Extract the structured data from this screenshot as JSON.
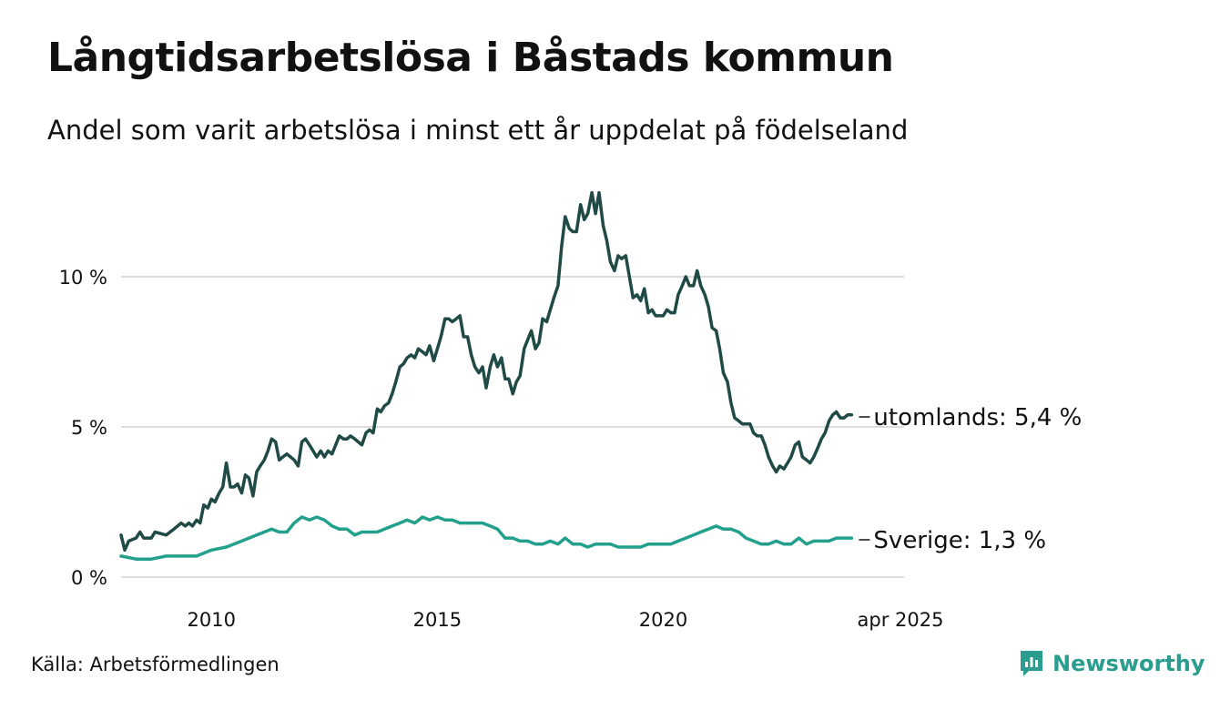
{
  "header": {
    "title": "Långtidsarbetslösa i Båstads kommun",
    "subtitle": "Andel som varit arbetslösa i minst ett år uppdelat på födelseland"
  },
  "footer": {
    "source": "Källa: Arbetsförmedlingen",
    "brand": "Newsworthy",
    "brand_color": "#2a9d8f"
  },
  "chart_data": {
    "type": "line",
    "title": "Långtidsarbetslösa i Båstads kommun",
    "subtitle": "Andel som varit arbetslösa i minst ett år uppdelat på födelseland",
    "xlabel": "",
    "ylabel": "",
    "xlim": [
      2008.0,
      2025.33
    ],
    "ylim": [
      0,
      13
    ],
    "grid": "horizontal",
    "y_ticks": [
      {
        "value": 0,
        "label": "0 %"
      },
      {
        "value": 5,
        "label": "5 %"
      },
      {
        "value": 10,
        "label": "10 %"
      }
    ],
    "x_ticks": [
      {
        "value": 2010,
        "label": "2010"
      },
      {
        "value": 2015,
        "label": "2015"
      },
      {
        "value": 2020,
        "label": "2020"
      },
      {
        "value": 2025.25,
        "label": "apr 2025"
      }
    ],
    "series": [
      {
        "name": "utomlands",
        "end_label": "utomlands: 5,4 %",
        "color": "#1f4a45",
        "points": [
          [
            2008.0,
            1.4
          ],
          [
            2008.08,
            0.9
          ],
          [
            2008.17,
            1.2
          ],
          [
            2008.33,
            1.3
          ],
          [
            2008.42,
            1.5
          ],
          [
            2008.5,
            1.3
          ],
          [
            2008.67,
            1.3
          ],
          [
            2008.75,
            1.5
          ],
          [
            2009.0,
            1.4
          ],
          [
            2009.17,
            1.6
          ],
          [
            2009.33,
            1.8
          ],
          [
            2009.42,
            1.7
          ],
          [
            2009.5,
            1.8
          ],
          [
            2009.58,
            1.7
          ],
          [
            2009.67,
            1.9
          ],
          [
            2009.75,
            1.8
          ],
          [
            2009.83,
            2.4
          ],
          [
            2009.92,
            2.3
          ],
          [
            2010.0,
            2.6
          ],
          [
            2010.08,
            2.5
          ],
          [
            2010.17,
            2.8
          ],
          [
            2010.25,
            3.0
          ],
          [
            2010.33,
            3.8
          ],
          [
            2010.42,
            3.0
          ],
          [
            2010.5,
            3.0
          ],
          [
            2010.58,
            3.1
          ],
          [
            2010.67,
            2.8
          ],
          [
            2010.75,
            3.4
          ],
          [
            2010.83,
            3.3
          ],
          [
            2010.92,
            2.7
          ],
          [
            2011.0,
            3.5
          ],
          [
            2011.08,
            3.7
          ],
          [
            2011.17,
            3.9
          ],
          [
            2011.25,
            4.2
          ],
          [
            2011.33,
            4.6
          ],
          [
            2011.42,
            4.5
          ],
          [
            2011.5,
            3.9
          ],
          [
            2011.58,
            4.0
          ],
          [
            2011.67,
            4.1
          ],
          [
            2011.75,
            4.0
          ],
          [
            2011.83,
            3.9
          ],
          [
            2011.92,
            3.7
          ],
          [
            2012.0,
            4.5
          ],
          [
            2012.08,
            4.6
          ],
          [
            2012.17,
            4.4
          ],
          [
            2012.25,
            4.2
          ],
          [
            2012.33,
            4.0
          ],
          [
            2012.42,
            4.2
          ],
          [
            2012.5,
            4.0
          ],
          [
            2012.58,
            4.2
          ],
          [
            2012.67,
            4.1
          ],
          [
            2012.75,
            4.4
          ],
          [
            2012.83,
            4.7
          ],
          [
            2012.92,
            4.6
          ],
          [
            2013.0,
            4.6
          ],
          [
            2013.08,
            4.7
          ],
          [
            2013.17,
            4.6
          ],
          [
            2013.25,
            4.5
          ],
          [
            2013.33,
            4.4
          ],
          [
            2013.42,
            4.8
          ],
          [
            2013.5,
            4.9
          ],
          [
            2013.58,
            4.8
          ],
          [
            2013.67,
            5.6
          ],
          [
            2013.75,
            5.5
          ],
          [
            2013.83,
            5.7
          ],
          [
            2013.92,
            5.8
          ],
          [
            2014.0,
            6.1
          ],
          [
            2014.08,
            6.5
          ],
          [
            2014.17,
            7.0
          ],
          [
            2014.25,
            7.1
          ],
          [
            2014.33,
            7.3
          ],
          [
            2014.42,
            7.4
          ],
          [
            2014.5,
            7.3
          ],
          [
            2014.58,
            7.6
          ],
          [
            2014.67,
            7.5
          ],
          [
            2014.75,
            7.4
          ],
          [
            2014.83,
            7.7
          ],
          [
            2014.92,
            7.2
          ],
          [
            2015.0,
            7.6
          ],
          [
            2015.08,
            8.0
          ],
          [
            2015.17,
            8.6
          ],
          [
            2015.25,
            8.6
          ],
          [
            2015.33,
            8.5
          ],
          [
            2015.42,
            8.6
          ],
          [
            2015.5,
            8.7
          ],
          [
            2015.58,
            8.0
          ],
          [
            2015.67,
            8.0
          ],
          [
            2015.75,
            7.4
          ],
          [
            2015.83,
            7.0
          ],
          [
            2015.92,
            6.8
          ],
          [
            2016.0,
            7.0
          ],
          [
            2016.08,
            6.3
          ],
          [
            2016.17,
            7.0
          ],
          [
            2016.25,
            7.4
          ],
          [
            2016.33,
            7.0
          ],
          [
            2016.42,
            7.3
          ],
          [
            2016.5,
            6.6
          ],
          [
            2016.58,
            6.6
          ],
          [
            2016.67,
            6.1
          ],
          [
            2016.75,
            6.5
          ],
          [
            2016.83,
            6.7
          ],
          [
            2016.92,
            7.6
          ],
          [
            2017.0,
            7.9
          ],
          [
            2017.08,
            8.2
          ],
          [
            2017.17,
            7.6
          ],
          [
            2017.25,
            7.8
          ],
          [
            2017.33,
            8.6
          ],
          [
            2017.42,
            8.5
          ],
          [
            2017.5,
            8.9
          ],
          [
            2017.58,
            9.3
          ],
          [
            2017.67,
            9.7
          ],
          [
            2017.75,
            11.0
          ],
          [
            2017.83,
            12.0
          ],
          [
            2017.92,
            11.6
          ],
          [
            2018.0,
            11.5
          ],
          [
            2018.08,
            11.5
          ],
          [
            2018.17,
            12.4
          ],
          [
            2018.25,
            11.9
          ],
          [
            2018.33,
            12.1
          ],
          [
            2018.42,
            12.8
          ],
          [
            2018.5,
            12.1
          ],
          [
            2018.58,
            12.8
          ],
          [
            2018.67,
            11.7
          ],
          [
            2018.75,
            11.2
          ],
          [
            2018.83,
            10.5
          ],
          [
            2018.92,
            10.2
          ],
          [
            2019.0,
            10.7
          ],
          [
            2019.08,
            10.6
          ],
          [
            2019.17,
            10.7
          ],
          [
            2019.25,
            10.0
          ],
          [
            2019.33,
            9.3
          ],
          [
            2019.42,
            9.4
          ],
          [
            2019.5,
            9.2
          ],
          [
            2019.58,
            9.6
          ],
          [
            2019.67,
            8.8
          ],
          [
            2019.75,
            8.9
          ],
          [
            2019.83,
            8.7
          ],
          [
            2019.92,
            8.7
          ],
          [
            2020.0,
            8.7
          ],
          [
            2020.08,
            8.9
          ],
          [
            2020.17,
            8.8
          ],
          [
            2020.25,
            8.8
          ],
          [
            2020.33,
            9.4
          ],
          [
            2020.42,
            9.7
          ],
          [
            2020.5,
            10.0
          ],
          [
            2020.58,
            9.7
          ],
          [
            2020.67,
            9.7
          ],
          [
            2020.75,
            10.2
          ],
          [
            2020.83,
            9.7
          ],
          [
            2020.92,
            9.4
          ],
          [
            2021.0,
            9.0
          ],
          [
            2021.08,
            8.3
          ],
          [
            2021.17,
            8.2
          ],
          [
            2021.25,
            7.6
          ],
          [
            2021.33,
            6.8
          ],
          [
            2021.42,
            6.5
          ],
          [
            2021.5,
            5.8
          ],
          [
            2021.58,
            5.3
          ],
          [
            2021.67,
            5.2
          ],
          [
            2021.75,
            5.1
          ],
          [
            2021.83,
            5.1
          ],
          [
            2021.92,
            5.1
          ],
          [
            2022.0,
            4.8
          ],
          [
            2022.08,
            4.7
          ],
          [
            2022.17,
            4.7
          ],
          [
            2022.25,
            4.4
          ],
          [
            2022.33,
            4.0
          ],
          [
            2022.42,
            3.7
          ],
          [
            2022.5,
            3.5
          ],
          [
            2022.58,
            3.7
          ],
          [
            2022.67,
            3.6
          ],
          [
            2022.75,
            3.8
          ],
          [
            2022.83,
            4.0
          ],
          [
            2022.92,
            4.4
          ],
          [
            2023.0,
            4.5
          ],
          [
            2023.08,
            4.0
          ],
          [
            2023.17,
            3.9
          ],
          [
            2023.25,
            3.8
          ],
          [
            2023.33,
            4.0
          ],
          [
            2023.42,
            4.3
          ],
          [
            2023.5,
            4.6
          ],
          [
            2023.58,
            4.8
          ],
          [
            2023.67,
            5.2
          ],
          [
            2023.75,
            5.4
          ],
          [
            2023.83,
            5.5
          ],
          [
            2023.92,
            5.3
          ],
          [
            2024.0,
            5.3
          ],
          [
            2024.08,
            5.4
          ],
          [
            2024.17,
            5.4
          ]
        ]
      },
      {
        "name": "Sverige",
        "end_label": "Sverige: 1,3 %",
        "color": "#22a08c",
        "points": [
          [
            2008.0,
            0.7
          ],
          [
            2008.33,
            0.6
          ],
          [
            2008.67,
            0.6
          ],
          [
            2009.0,
            0.7
          ],
          [
            2009.33,
            0.7
          ],
          [
            2009.67,
            0.7
          ],
          [
            2010.0,
            0.9
          ],
          [
            2010.33,
            1.0
          ],
          [
            2010.67,
            1.2
          ],
          [
            2011.0,
            1.4
          ],
          [
            2011.17,
            1.5
          ],
          [
            2011.33,
            1.6
          ],
          [
            2011.5,
            1.5
          ],
          [
            2011.67,
            1.5
          ],
          [
            2011.83,
            1.8
          ],
          [
            2012.0,
            2.0
          ],
          [
            2012.17,
            1.9
          ],
          [
            2012.33,
            2.0
          ],
          [
            2012.5,
            1.9
          ],
          [
            2012.67,
            1.7
          ],
          [
            2012.83,
            1.6
          ],
          [
            2013.0,
            1.6
          ],
          [
            2013.17,
            1.4
          ],
          [
            2013.33,
            1.5
          ],
          [
            2013.5,
            1.5
          ],
          [
            2013.67,
            1.5
          ],
          [
            2013.83,
            1.6
          ],
          [
            2014.0,
            1.7
          ],
          [
            2014.17,
            1.8
          ],
          [
            2014.33,
            1.9
          ],
          [
            2014.5,
            1.8
          ],
          [
            2014.67,
            2.0
          ],
          [
            2014.83,
            1.9
          ],
          [
            2015.0,
            2.0
          ],
          [
            2015.17,
            1.9
          ],
          [
            2015.33,
            1.9
          ],
          [
            2015.5,
            1.8
          ],
          [
            2015.67,
            1.8
          ],
          [
            2015.83,
            1.8
          ],
          [
            2016.0,
            1.8
          ],
          [
            2016.17,
            1.7
          ],
          [
            2016.33,
            1.6
          ],
          [
            2016.5,
            1.3
          ],
          [
            2016.67,
            1.3
          ],
          [
            2016.83,
            1.2
          ],
          [
            2017.0,
            1.2
          ],
          [
            2017.17,
            1.1
          ],
          [
            2017.33,
            1.1
          ],
          [
            2017.5,
            1.2
          ],
          [
            2017.67,
            1.1
          ],
          [
            2017.83,
            1.3
          ],
          [
            2018.0,
            1.1
          ],
          [
            2018.17,
            1.1
          ],
          [
            2018.33,
            1.0
          ],
          [
            2018.5,
            1.1
          ],
          [
            2018.67,
            1.1
          ],
          [
            2018.83,
            1.1
          ],
          [
            2019.0,
            1.0
          ],
          [
            2019.17,
            1.0
          ],
          [
            2019.33,
            1.0
          ],
          [
            2019.5,
            1.0
          ],
          [
            2019.67,
            1.1
          ],
          [
            2019.83,
            1.1
          ],
          [
            2020.0,
            1.1
          ],
          [
            2020.17,
            1.1
          ],
          [
            2020.33,
            1.2
          ],
          [
            2020.5,
            1.3
          ],
          [
            2020.67,
            1.4
          ],
          [
            2020.83,
            1.5
          ],
          [
            2021.0,
            1.6
          ],
          [
            2021.17,
            1.7
          ],
          [
            2021.33,
            1.6
          ],
          [
            2021.5,
            1.6
          ],
          [
            2021.67,
            1.5
          ],
          [
            2021.83,
            1.3
          ],
          [
            2022.0,
            1.2
          ],
          [
            2022.17,
            1.1
          ],
          [
            2022.33,
            1.1
          ],
          [
            2022.5,
            1.2
          ],
          [
            2022.67,
            1.1
          ],
          [
            2022.83,
            1.1
          ],
          [
            2023.0,
            1.3
          ],
          [
            2023.17,
            1.1
          ],
          [
            2023.33,
            1.2
          ],
          [
            2023.5,
            1.2
          ],
          [
            2023.67,
            1.2
          ],
          [
            2023.83,
            1.3
          ],
          [
            2024.0,
            1.3
          ],
          [
            2024.17,
            1.3
          ]
        ]
      }
    ]
  }
}
